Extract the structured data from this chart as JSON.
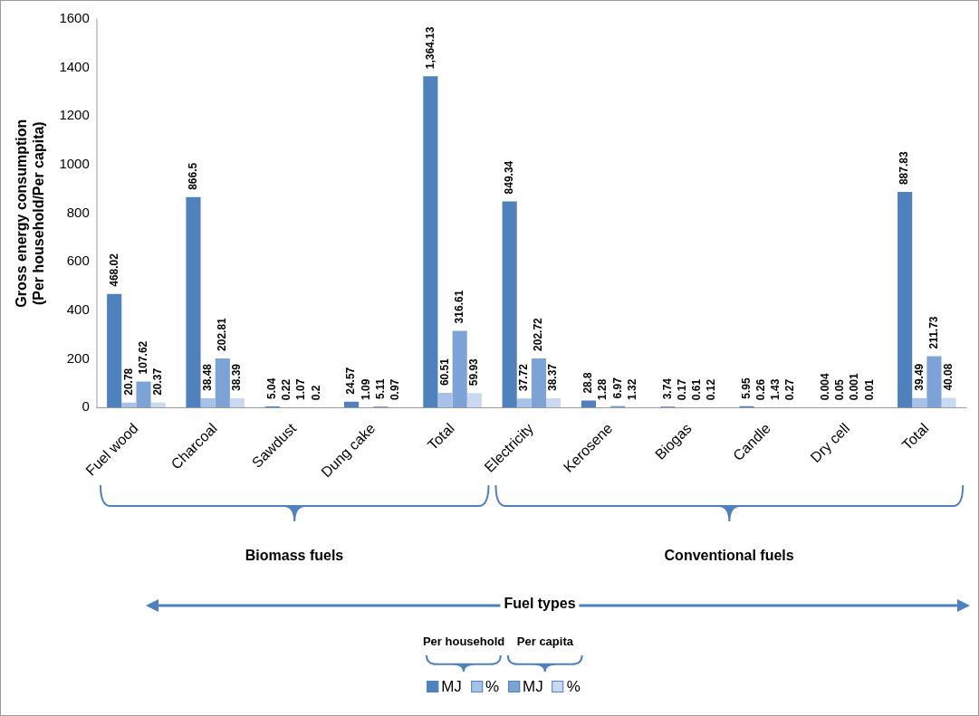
{
  "chart_data": {
    "type": "bar",
    "ylabel": "Gross energy consumption\n(Per household/Per capita)",
    "categories": [
      "Fuel wood",
      "Charcoal",
      "Sawdust",
      "Dung cake",
      "Total",
      "Electricity",
      "Kerosene",
      "Biogas",
      "Candle",
      "Dry cell",
      "Total"
    ],
    "series": [
      {
        "name": "MJ",
        "color": "#4f81bd",
        "values": [
          468.02,
          866.5,
          5.04,
          24.57,
          1364.13,
          849.34,
          28.8,
          3.74,
          5.95,
          0.004,
          887.83
        ],
        "value_labels": [
          "468.02",
          "866.5",
          "5.04",
          "24.57",
          "1,364.13",
          "849.34",
          "28.8",
          "3.74",
          "5.95",
          "0.004",
          "887.83"
        ]
      },
      {
        "name": "%",
        "color": "#a7c2e6",
        "values": [
          20.78,
          38.48,
          0.22,
          1.09,
          60.51,
          37.72,
          1.28,
          0.17,
          0.26,
          0.05,
          39.49
        ],
        "value_labels": [
          "20.78",
          "38.48",
          "0.22",
          "1.09",
          "60.51",
          "37.72",
          "1.28",
          "0.17",
          "0.26",
          "0.05",
          "39.49"
        ]
      },
      {
        "name": "MJ",
        "color": "#7da3d6",
        "values": [
          107.62,
          202.81,
          1.07,
          5.11,
          316.61,
          202.72,
          6.97,
          0.61,
          1.43,
          0.001,
          211.73
        ],
        "value_labels": [
          "107.62",
          "202.81",
          "1.07",
          "5.11",
          "316.61",
          "202.72",
          "6.97",
          "0.61",
          "1.43",
          "0.001",
          "211.73"
        ]
      },
      {
        "name": "%",
        "color": "#c9d9ef",
        "values": [
          20.37,
          38.39,
          0.2,
          0.97,
          59.93,
          38.37,
          1.32,
          0.12,
          0.27,
          0.01,
          40.08
        ],
        "value_labels": [
          "20.37",
          "38.39",
          "0.2",
          "0.97",
          "59.93",
          "38.37",
          "1.32",
          "0.12",
          "0.27",
          "0.01",
          "40.08"
        ]
      }
    ],
    "ylim": [
      0,
      1600
    ],
    "yticks": [
      0,
      200,
      400,
      600,
      800,
      1000,
      1200,
      1400,
      1600
    ],
    "grid": false,
    "legend": "bottom",
    "annotations": [
      "Biomass fuels",
      "Conventional fuels",
      "Fuel types",
      "Per household",
      "Per capita"
    ]
  }
}
